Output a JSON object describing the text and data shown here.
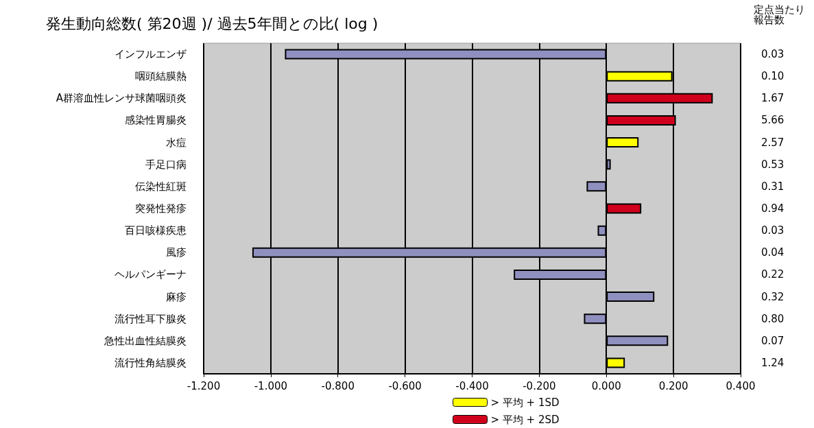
{
  "chart_data": {
    "type": "bar",
    "orientation": "horizontal",
    "stacked": true,
    "title": "発生動向総数( 第20週 )/ 過去5年間との比( log )",
    "categories": [
      "インフルエンザ",
      "咽頭結膜熱",
      "A群溶血性レンサ球菌咽頭炎",
      "感染性胃腸炎",
      "水痘",
      "手足口病",
      "伝染性紅斑",
      "突発性発疹",
      "百日咳様疾患",
      "風疹",
      "ヘルパンギーナ",
      "麻疹",
      "流行性耳下腺炎",
      "急性出血性結膜炎",
      "流行性角結膜炎"
    ],
    "y2label": "定点当たり報告数",
    "y2_categories": [
      "0.03",
      "0.10",
      "1.67",
      "5.66",
      "2.57",
      "0.53",
      "0.31",
      "0.94",
      "0.03",
      "0.04",
      "0.22",
      "0.32",
      "0.80",
      "0.07",
      "1.24"
    ],
    "series": [
      {
        "color": "#9090c0",
        "values": [
          -0.958,
          null,
          null,
          null,
          null,
          0.013,
          -0.059,
          null,
          -0.026,
          -1.055,
          -0.276,
          0.143,
          -0.067,
          0.184,
          null
        ]
      },
      {
        "name": "> 平均 + 1SD",
        "color": "#ffff00",
        "values": [
          null,
          0.197,
          null,
          null,
          0.096,
          null,
          null,
          null,
          null,
          null,
          null,
          null,
          null,
          null,
          0.055
        ]
      },
      {
        "name": "> 平均 + 2SD",
        "color": "#d0001c",
        "values": [
          null,
          null,
          0.317,
          0.207,
          null,
          null,
          null,
          0.104,
          null,
          null,
          null,
          null,
          null,
          null,
          null
        ]
      }
    ],
    "xlim": [
      -1.2,
      0.4
    ],
    "xticks": [
      {
        "value": -1.2,
        "label": "-1.200"
      },
      {
        "value": -1.0,
        "label": "-1.000"
      },
      {
        "value": -0.8,
        "label": "-0.800"
      },
      {
        "value": -0.6,
        "label": "-0.600"
      },
      {
        "value": -0.4,
        "label": "-0.400"
      },
      {
        "value": -0.2,
        "label": "-0.200"
      },
      {
        "value": 0,
        "label": "0.000"
      },
      {
        "value": 0.2,
        "label": "0.200"
      },
      {
        "value": 0.4,
        "label": "0.400"
      }
    ],
    "grid": "x",
    "legend": "bottom"
  }
}
